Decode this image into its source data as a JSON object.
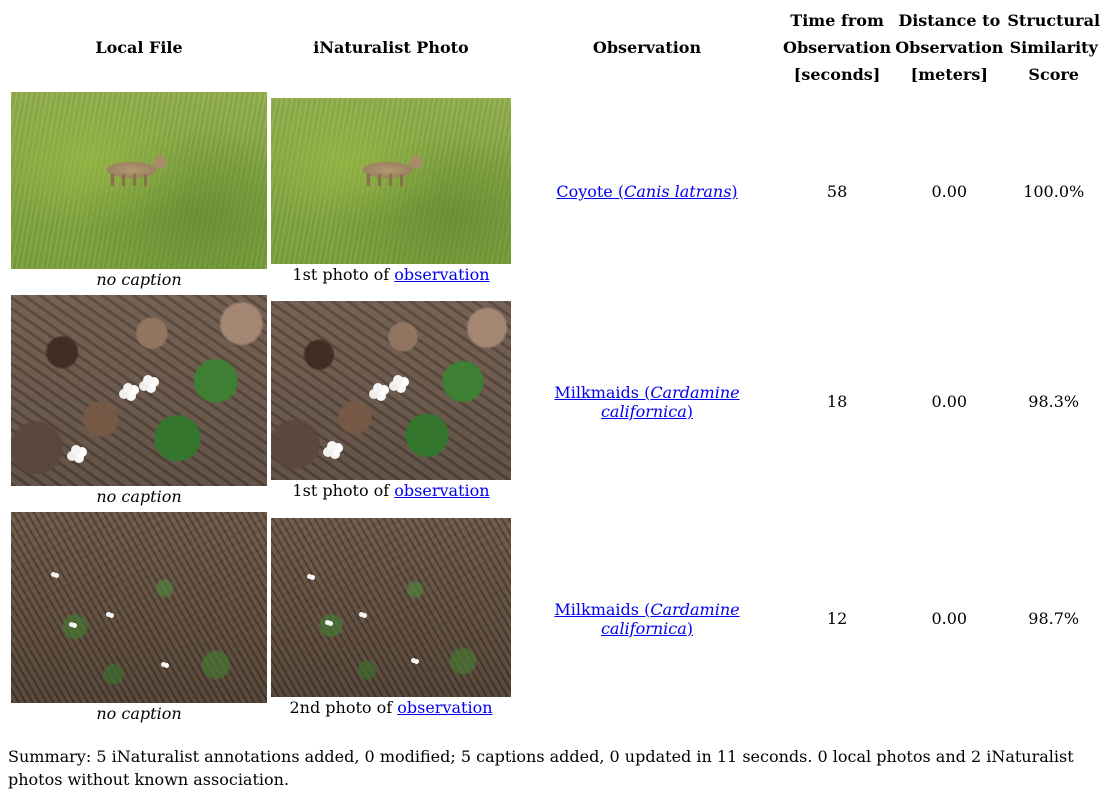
{
  "table": {
    "headers": {
      "local_file": "Local File",
      "inat_photo": "iNaturalist Photo",
      "observation": "Observation",
      "time_line1": "Time from",
      "time_line2": "Observation",
      "time_line3": "[seconds]",
      "dist_line1": "Distance to",
      "dist_line2": "Observation",
      "dist_line3": "[meters]",
      "ssim_line1": "Structural",
      "ssim_line2": "Similarity",
      "ssim_line3": "Score"
    },
    "rows": [
      {
        "local_caption": "no caption",
        "inat_caption_prefix": "1st photo of ",
        "inat_caption_link": "observation",
        "common_name": "Coyote (",
        "scientific_name": "Canis latrans",
        "name_suffix": ")",
        "time": "58",
        "distance": "0.00",
        "ssim": "100.0%"
      },
      {
        "local_caption": "no caption",
        "inat_caption_prefix": "1st photo of ",
        "inat_caption_link": "observation",
        "common_name": "Milkmaids (",
        "scientific_name": "Cardamine californica",
        "name_suffix": ")",
        "time": "18",
        "distance": "0.00",
        "ssim": "98.3%"
      },
      {
        "local_caption": "no caption",
        "inat_caption_prefix": "2nd photo of ",
        "inat_caption_link": "observation",
        "common_name": "Milkmaids (",
        "scientific_name": "Cardamine californica",
        "name_suffix": ")",
        "time": "12",
        "distance": "0.00",
        "ssim": "98.7%"
      }
    ]
  },
  "summary": "Summary: 5 iNaturalist annotations added, 0 modified; 5 captions added, 0 updated in 11 seconds. 0 local photos and 2 iNaturalist photos without known association.",
  "colors": {
    "link": "#0000ee",
    "text": "#000000",
    "background": "#ffffff"
  }
}
